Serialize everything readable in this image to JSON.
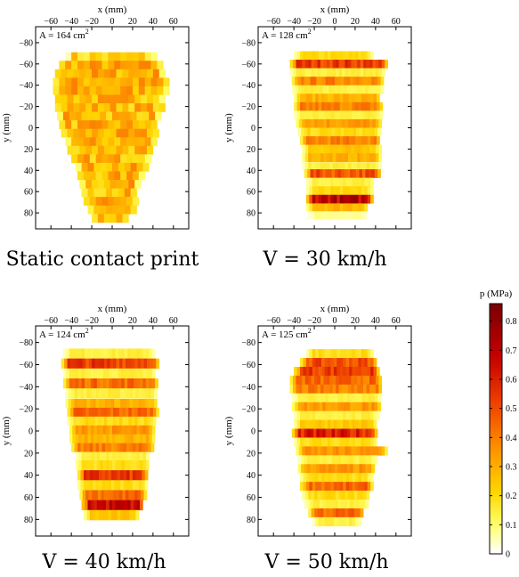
{
  "chart_data": [
    {
      "type": "heatmap",
      "caption": "Static contact print",
      "area_label": "A = 164 cm",
      "area_sup": "2",
      "xlabel": "x (mm)",
      "ylabel": "y (mm)",
      "xlim": [
        -75,
        75
      ],
      "ylim": [
        -95,
        95
      ],
      "xticks": [
        -60,
        -40,
        -20,
        0,
        20,
        40,
        60
      ],
      "yticks": [
        -80,
        -60,
        -40,
        -20,
        0,
        20,
        40,
        60,
        80
      ],
      "pattern": "static",
      "rows": [
        {
          "y": -67,
          "x0": -46,
          "x1": 40,
          "p": 0.2
        },
        {
          "y": -59,
          "x0": -52,
          "x1": 46,
          "p": 0.3
        },
        {
          "y": -51,
          "x0": -56,
          "x1": 50,
          "p": 0.3
        },
        {
          "y": -43,
          "x0": -58,
          "x1": 52,
          "p": 0.3
        },
        {
          "y": -35,
          "x0": -58,
          "x1": 52,
          "p": 0.3
        },
        {
          "y": -27,
          "x0": -56,
          "x1": 52,
          "p": 0.28
        },
        {
          "y": -19,
          "x0": -56,
          "x1": 48,
          "p": 0.28
        },
        {
          "y": -11,
          "x0": -54,
          "x1": 46,
          "p": 0.28
        },
        {
          "y": -3,
          "x0": -52,
          "x1": 44,
          "p": 0.28
        },
        {
          "y": 5,
          "x0": -50,
          "x1": 42,
          "p": 0.28
        },
        {
          "y": 13,
          "x0": -46,
          "x1": 40,
          "p": 0.28
        },
        {
          "y": 21,
          "x0": -44,
          "x1": 38,
          "p": 0.28
        },
        {
          "y": 29,
          "x0": -40,
          "x1": 36,
          "p": 0.28
        },
        {
          "y": 37,
          "x0": -36,
          "x1": 32,
          "p": 0.28
        },
        {
          "y": 45,
          "x0": -34,
          "x1": 28,
          "p": 0.28
        },
        {
          "y": 53,
          "x0": -32,
          "x1": 26,
          "p": 0.28
        },
        {
          "y": 61,
          "x0": -30,
          "x1": 24,
          "p": 0.28
        },
        {
          "y": 69,
          "x0": -28,
          "x1": 22,
          "p": 0.28
        },
        {
          "y": 77,
          "x0": -24,
          "x1": 20,
          "p": 0.25
        },
        {
          "y": 85,
          "x0": -20,
          "x1": 16,
          "p": 0.22
        }
      ]
    },
    {
      "type": "heatmap",
      "caption": "V = 30 km/h",
      "area_label": "A = 128 cm",
      "area_sup": "2",
      "xlabel": "x (mm)",
      "ylabel": "y (mm)",
      "xlim": [
        -75,
        75
      ],
      "ylim": [
        -95,
        95
      ],
      "xticks": [
        -60,
        -40,
        -20,
        0,
        20,
        40,
        60
      ],
      "yticks": [
        -80,
        -60,
        -40,
        -20,
        0,
        20,
        40,
        60,
        80
      ],
      "pattern": "banded",
      "rows": [
        {
          "y": -68,
          "x0": -40,
          "x1": 36,
          "p": 0.2
        },
        {
          "y": -60,
          "x0": -44,
          "x1": 50,
          "p": 0.55
        },
        {
          "y": -52,
          "x0": -44,
          "x1": 48,
          "p": 0.15
        },
        {
          "y": -44,
          "x0": -42,
          "x1": 46,
          "p": 0.4
        },
        {
          "y": -36,
          "x0": -42,
          "x1": 46,
          "p": 0.15
        },
        {
          "y": -28,
          "x0": -40,
          "x1": 44,
          "p": 0.3
        },
        {
          "y": -20,
          "x0": -40,
          "x1": 46,
          "p": 0.4
        },
        {
          "y": -12,
          "x0": -40,
          "x1": 46,
          "p": 0.15
        },
        {
          "y": -4,
          "x0": -38,
          "x1": 44,
          "p": 0.35
        },
        {
          "y": 4,
          "x0": -36,
          "x1": 44,
          "p": 0.2
        },
        {
          "y": 12,
          "x0": -34,
          "x1": 44,
          "p": 0.4
        },
        {
          "y": 20,
          "x0": -32,
          "x1": 44,
          "p": 0.25
        },
        {
          "y": 28,
          "x0": -32,
          "x1": 44,
          "p": 0.3
        },
        {
          "y": 36,
          "x0": -32,
          "x1": 44,
          "p": 0.15
        },
        {
          "y": 43,
          "x0": -30,
          "x1": 44,
          "p": 0.5
        },
        {
          "y": 51,
          "x0": -28,
          "x1": 38,
          "p": 0.15
        },
        {
          "y": 59,
          "x0": -28,
          "x1": 36,
          "p": 0.2
        },
        {
          "y": 67,
          "x0": -28,
          "x1": 36,
          "p": 0.72
        },
        {
          "y": 75,
          "x0": -28,
          "x1": 32,
          "p": 0.3
        },
        {
          "y": 82,
          "x0": -26,
          "x1": 30,
          "p": 0.08
        }
      ]
    },
    {
      "type": "heatmap",
      "caption": "V = 40 km/h",
      "area_label": "A = 124 cm",
      "area_sup": "2",
      "xlabel": "x (mm)",
      "ylabel": "y (mm)",
      "xlim": [
        -75,
        75
      ],
      "ylim": [
        -95,
        95
      ],
      "xticks": [
        -60,
        -40,
        -20,
        0,
        20,
        40,
        60
      ],
      "yticks": [
        -80,
        -60,
        -40,
        -20,
        0,
        20,
        40,
        60,
        80
      ],
      "pattern": "banded",
      "rows": [
        {
          "y": -70,
          "x0": -48,
          "x1": 40,
          "p": 0.15
        },
        {
          "y": -61,
          "x0": -50,
          "x1": 44,
          "p": 0.55
        },
        {
          "y": -52,
          "x0": -48,
          "x1": 42,
          "p": 0.15
        },
        {
          "y": -43,
          "x0": -48,
          "x1": 44,
          "p": 0.45
        },
        {
          "y": -34,
          "x0": -46,
          "x1": 44,
          "p": 0.15
        },
        {
          "y": -25,
          "x0": -46,
          "x1": 44,
          "p": 0.3
        },
        {
          "y": -17,
          "x0": -44,
          "x1": 44,
          "p": 0.45
        },
        {
          "y": -9,
          "x0": -44,
          "x1": 42,
          "p": 0.2
        },
        {
          "y": -1,
          "x0": -42,
          "x1": 40,
          "p": 0.35
        },
        {
          "y": 7,
          "x0": -42,
          "x1": 40,
          "p": 0.3
        },
        {
          "y": 15,
          "x0": -40,
          "x1": 40,
          "p": 0.4
        },
        {
          "y": 23,
          "x0": -36,
          "x1": 36,
          "p": 0.15
        },
        {
          "y": 31,
          "x0": -36,
          "x1": 36,
          "p": 0.2
        },
        {
          "y": 40,
          "x0": -34,
          "x1": 34,
          "p": 0.55
        },
        {
          "y": 49,
          "x0": -34,
          "x1": 34,
          "p": 0.2
        },
        {
          "y": 58,
          "x0": -32,
          "x1": 32,
          "p": 0.45
        },
        {
          "y": 67,
          "x0": -30,
          "x1": 30,
          "p": 0.68
        },
        {
          "y": 76,
          "x0": -28,
          "x1": 26,
          "p": 0.25
        }
      ]
    },
    {
      "type": "heatmap",
      "caption": "V = 50 km/h",
      "area_label": "A = 125 cm",
      "area_sup": "2",
      "xlabel": "x (mm)",
      "ylabel": "y (mm)",
      "xlim": [
        -75,
        75
      ],
      "ylim": [
        -95,
        95
      ],
      "xticks": [
        -60,
        -40,
        -20,
        0,
        20,
        40,
        60
      ],
      "yticks": [
        -80,
        -60,
        -40,
        -20,
        0,
        20,
        40,
        60,
        80
      ],
      "pattern": "banded",
      "rows": [
        {
          "y": -70,
          "x0": -28,
          "x1": 36,
          "p": 0.2
        },
        {
          "y": -62,
          "x0": -34,
          "x1": 40,
          "p": 0.5
        },
        {
          "y": -54,
          "x0": -40,
          "x1": 42,
          "p": 0.55
        },
        {
          "y": -46,
          "x0": -44,
          "x1": 44,
          "p": 0.45
        },
        {
          "y": -38,
          "x0": -44,
          "x1": 46,
          "p": 0.4
        },
        {
          "y": -30,
          "x0": -42,
          "x1": 44,
          "p": 0.15
        },
        {
          "y": -22,
          "x0": -42,
          "x1": 44,
          "p": 0.35
        },
        {
          "y": -14,
          "x0": -40,
          "x1": 42,
          "p": 0.15
        },
        {
          "y": -6,
          "x0": -40,
          "x1": 40,
          "p": 0.25
        },
        {
          "y": 2,
          "x0": -42,
          "x1": 40,
          "p": 0.6
        },
        {
          "y": 10,
          "x0": -40,
          "x1": 40,
          "p": 0.2
        },
        {
          "y": 18,
          "x0": -38,
          "x1": 50,
          "p": 0.35
        },
        {
          "y": 26,
          "x0": -36,
          "x1": 40,
          "p": 0.15
        },
        {
          "y": 34,
          "x0": -36,
          "x1": 38,
          "p": 0.35
        },
        {
          "y": 42,
          "x0": -34,
          "x1": 36,
          "p": 0.2
        },
        {
          "y": 50,
          "x0": -34,
          "x1": 36,
          "p": 0.45
        },
        {
          "y": 58,
          "x0": -32,
          "x1": 34,
          "p": 0.2
        },
        {
          "y": 66,
          "x0": -30,
          "x1": 32,
          "p": 0.15
        },
        {
          "y": 74,
          "x0": -26,
          "x1": 28,
          "p": 0.45
        },
        {
          "y": 82,
          "x0": -22,
          "x1": 24,
          "p": 0.15
        }
      ]
    }
  ],
  "colorbar": {
    "label": "p (MPa)",
    "ticks": [
      "0",
      "0.1",
      "0.2",
      "0.3",
      "0.4",
      "0.5",
      "0.6",
      "0.7",
      "0.8"
    ],
    "range": [
      0,
      0.86
    ],
    "colormap": "hot-reversed",
    "colors": [
      "#ffffff",
      "#ffff66",
      "#ffd400",
      "#ff9a00",
      "#f24a00",
      "#c80000",
      "#7a0000"
    ]
  }
}
